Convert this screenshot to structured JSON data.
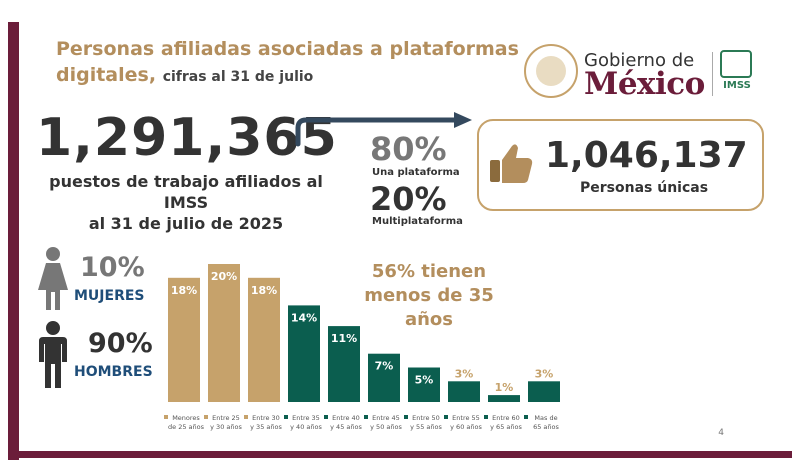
{
  "slide": {
    "title_main": "Personas afiliadas asociadas a plataformas digitales,",
    "title_sub": "cifras al 31 de julio",
    "page_number": "4"
  },
  "logo": {
    "line1": "Gobierno de",
    "line2": "México",
    "imss": "IMSS"
  },
  "stats": {
    "total": "1,291,365",
    "total_desc_1": "puestos de trabajo afiliados al IMSS",
    "total_desc_2": "al 31 de julio de 2025",
    "one_platform_pct": "80%",
    "one_platform_label": "Una plataforma",
    "multi_platform_pct": "20%",
    "multi_platform_label": "Multiplataforma",
    "unique_count": "1,046,137",
    "unique_label": "Personas únicas"
  },
  "gender": {
    "women_pct": "10%",
    "women_label": "MUJERES",
    "men_pct": "90%",
    "men_label": "HOMBRES"
  },
  "highlight": {
    "line1": "56% tienen",
    "line2": "menos de 35",
    "line3": "años"
  },
  "colors": {
    "gold": "#b38e5d",
    "green": "#0b5e4f",
    "maroon": "#6b1d3a"
  },
  "chart_data": {
    "type": "bar",
    "categories": [
      [
        "Menores",
        "de 25 años"
      ],
      [
        "Entre 25",
        "y 30 años"
      ],
      [
        "Entre 30",
        "y 35 años"
      ],
      [
        "Entre 35",
        "y 40 años"
      ],
      [
        "Entre 40",
        "y 45 años"
      ],
      [
        "Entre 45",
        "y 50 años"
      ],
      [
        "Entre 50",
        "y 55 años"
      ],
      [
        "Entre 55",
        "y 60 años"
      ],
      [
        "Entre 60",
        "y 65 años"
      ],
      [
        "Mas de",
        "65 años"
      ]
    ],
    "values": [
      18,
      20,
      18,
      14,
      11,
      7,
      5,
      3,
      1,
      3
    ],
    "labels": [
      "18%",
      "20%",
      "18%",
      "14%",
      "11%",
      "7%",
      "5%",
      "3%",
      "1%",
      "3%"
    ],
    "bar_colors": [
      "#c6a26b",
      "#c6a26b",
      "#c6a26b",
      "#0b5e4f",
      "#0b5e4f",
      "#0b5e4f",
      "#0b5e4f",
      "#0b5e4f",
      "#0b5e4f",
      "#0b5e4f"
    ],
    "ylim": [
      0,
      20
    ]
  }
}
